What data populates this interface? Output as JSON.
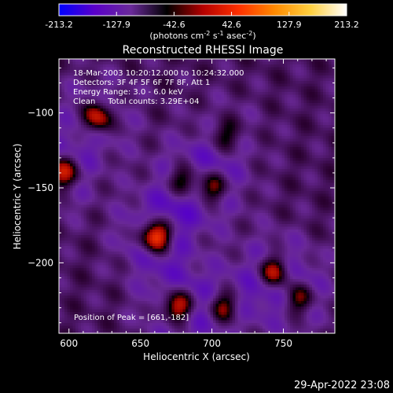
{
  "colorbar": {
    "ticks": [
      "-213.2",
      "-127.9",
      "-42.6",
      "42.6",
      "127.9",
      "213.2"
    ],
    "tick_values": [
      -213.2,
      -127.9,
      -42.6,
      42.6,
      127.9,
      213.2
    ],
    "range": [
      -213.2,
      213.2
    ],
    "unit_label": {
      "base": "(photons cm",
      "e1": "-2",
      "mid1": " s",
      "e2": "-1",
      "mid2": " asec",
      "e3": "-2",
      "end": ")"
    },
    "colors": [
      "#0000ff",
      "#5a00c8",
      "#6a2a9a",
      "#000000",
      "#b40000",
      "#ff3000",
      "#ff8a00",
      "#ffd040",
      "#ffffff"
    ]
  },
  "chart_data": {
    "type": "heatmap",
    "title": "Reconstructed RHESSI Image",
    "xlabel": "Heliocentric X (arcsec)",
    "ylabel": "Heliocentric Y (arcsec)",
    "xlim": [
      593,
      786
    ],
    "ylim": [
      -247,
      -64
    ],
    "xticks": [
      600,
      650,
      700,
      750
    ],
    "yticks": [
      -100,
      -150,
      -200
    ],
    "xtick_labels": [
      "600",
      "650",
      "700",
      "750"
    ],
    "ytick_labels": [
      "−100",
      "−150",
      "−200"
    ],
    "annotations": [
      "18-Mar-2003 10:20:12.000 to 10:24:32.000",
      "Detectors: 3F 4F 5F 6F 7F 8F, Att 1",
      "Energy Range: 3.0 - 6.0 keV",
      "Clean     Total counts: 3.29E+04"
    ],
    "peak_label": "Position of Peak = [661,-182]",
    "peak": [
      661,
      -182
    ],
    "sources": [
      {
        "x": 661,
        "y": -182,
        "value": 213
      },
      {
        "x": 620,
        "y": -103,
        "value": 150
      },
      {
        "x": 595,
        "y": -140,
        "value": 150
      },
      {
        "x": 676,
        "y": -229,
        "value": 170
      },
      {
        "x": 708,
        "y": -229,
        "value": 120
      },
      {
        "x": 744,
        "y": -206,
        "value": 150
      },
      {
        "x": 760,
        "y": -224,
        "value": 120
      },
      {
        "x": 700,
        "y": -150,
        "value": 130
      },
      {
        "x": 680,
        "y": -145,
        "value": 120
      },
      {
        "x": 710,
        "y": -115,
        "value": 80
      }
    ],
    "colorscale_range": [
      -213.2,
      213.2
    ]
  },
  "footer": {
    "timestamp": "29-Apr-2022 23:08"
  }
}
